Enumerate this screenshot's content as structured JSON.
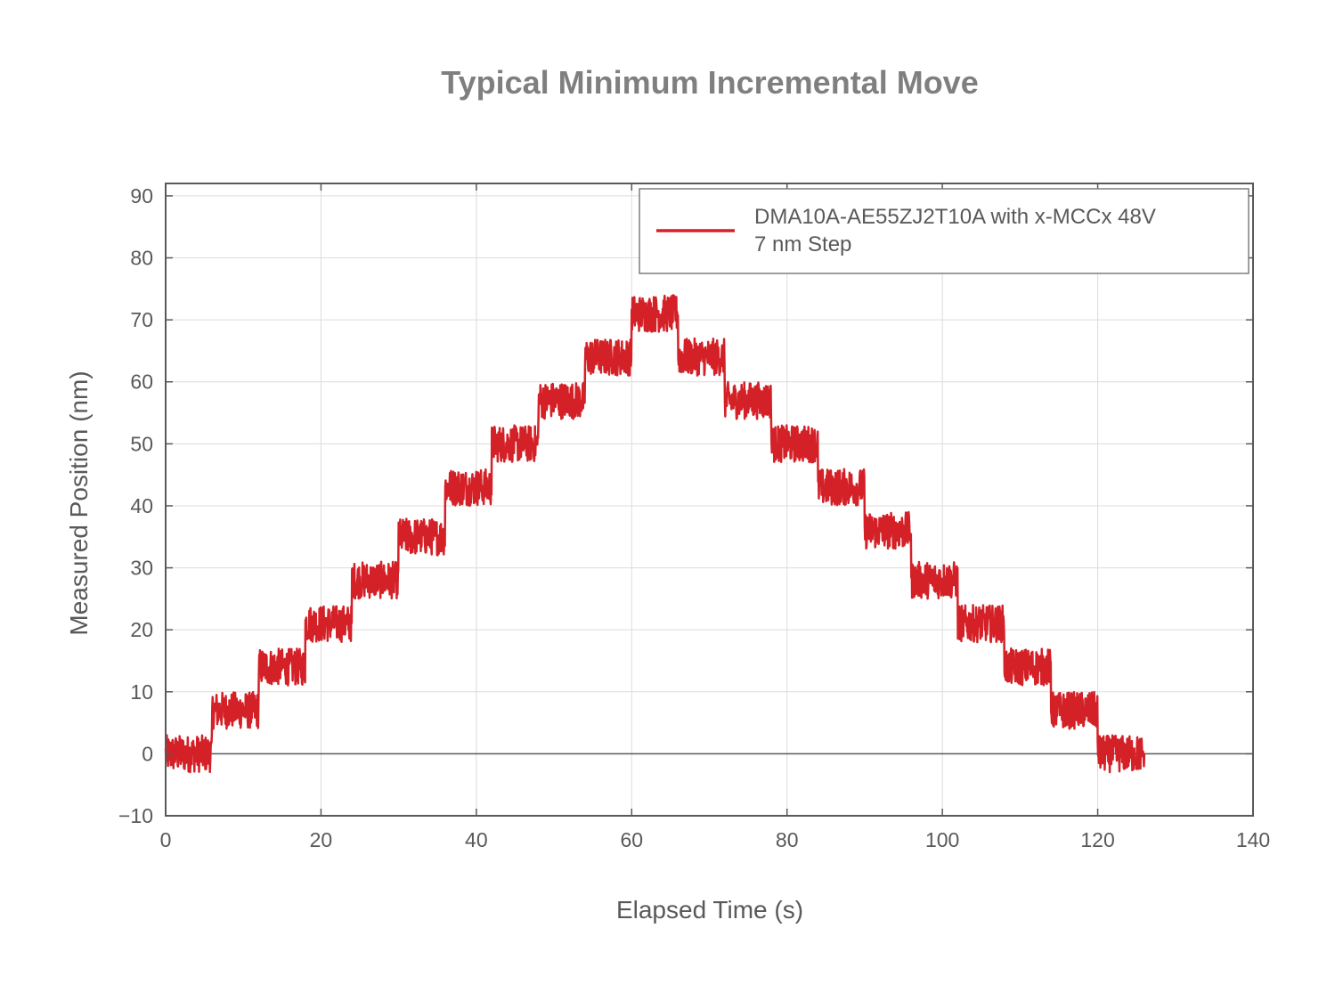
{
  "chart_data": {
    "type": "line",
    "title": "Typical Minimum Incremental Move",
    "xlabel": "Elapsed Time (s)",
    "ylabel": "Measured Position (nm)",
    "xlim": [
      0,
      140
    ],
    "ylim": [
      -10,
      92
    ],
    "x_ticks": [
      0,
      20,
      40,
      60,
      80,
      100,
      120,
      140
    ],
    "y_ticks": [
      -10,
      0,
      10,
      20,
      30,
      40,
      50,
      60,
      70,
      80,
      90
    ],
    "x_tick_labels": [
      "0",
      "20",
      "40",
      "60",
      "80",
      "100",
      "120",
      "140"
    ],
    "y_tick_labels": [
      "−10",
      "0",
      "10",
      "20",
      "30",
      "40",
      "50",
      "60",
      "70",
      "80",
      "90"
    ],
    "grid": true,
    "legend_position": "top-right",
    "series": [
      {
        "name": "DMA10A-AE55ZJ2T10A with x-MCCx 48V 7 nm Step",
        "legend_lines": [
          "DMA10A-AE55ZJ2T10A with x-MCCx 48V",
          "7 nm Step"
        ],
        "color": "#d42027",
        "step_duration_s": 6,
        "noise_band_nm": 3,
        "levels": [
          {
            "t_start": 0,
            "t_end": 6,
            "position": 0
          },
          {
            "t_start": 6,
            "t_end": 12,
            "position": 7
          },
          {
            "t_start": 12,
            "t_end": 18,
            "position": 14
          },
          {
            "t_start": 18,
            "t_end": 24,
            "position": 21
          },
          {
            "t_start": 24,
            "t_end": 30,
            "position": 28
          },
          {
            "t_start": 30,
            "t_end": 36,
            "position": 35
          },
          {
            "t_start": 36,
            "t_end": 42,
            "position": 43
          },
          {
            "t_start": 42,
            "t_end": 48,
            "position": 50
          },
          {
            "t_start": 48,
            "t_end": 54,
            "position": 57
          },
          {
            "t_start": 54,
            "t_end": 60,
            "position": 64
          },
          {
            "t_start": 60,
            "t_end": 66,
            "position": 71
          },
          {
            "t_start": 66,
            "t_end": 72,
            "position": 64
          },
          {
            "t_start": 72,
            "t_end": 78,
            "position": 57
          },
          {
            "t_start": 78,
            "t_end": 84,
            "position": 50
          },
          {
            "t_start": 84,
            "t_end": 90,
            "position": 43
          },
          {
            "t_start": 90,
            "t_end": 96,
            "position": 36
          },
          {
            "t_start": 96,
            "t_end": 102,
            "position": 28
          },
          {
            "t_start": 102,
            "t_end": 108,
            "position": 21
          },
          {
            "t_start": 108,
            "t_end": 114,
            "position": 14
          },
          {
            "t_start": 114,
            "t_end": 120,
            "position": 7
          },
          {
            "t_start": 120,
            "t_end": 126,
            "position": 0
          }
        ]
      }
    ]
  }
}
